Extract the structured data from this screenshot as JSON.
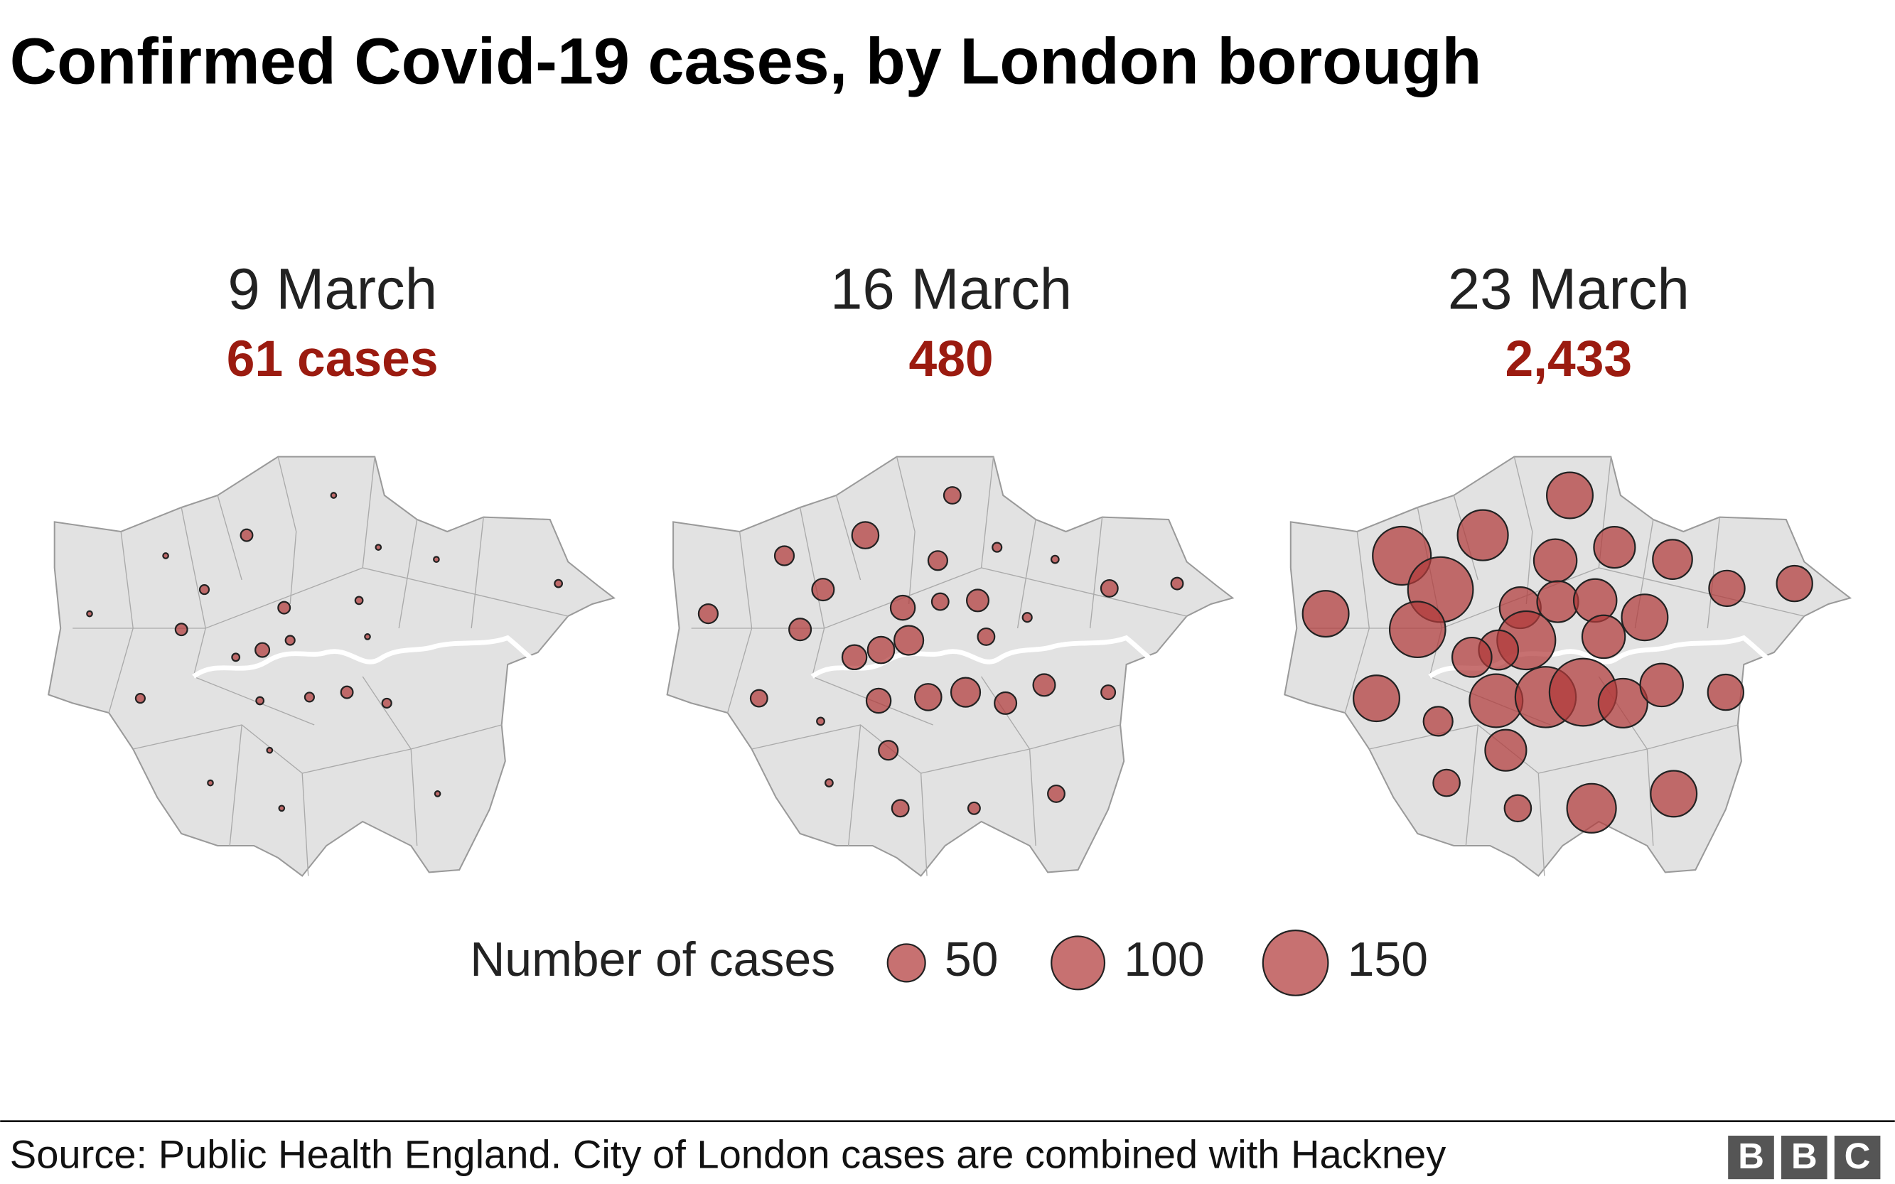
{
  "title": "Confirmed Covid-19 cases, by London borough",
  "color": "#b23a3a",
  "panels": [
    {
      "date": "9 March",
      "total": "61 cases",
      "values": [
        1,
        1,
        5,
        3,
        1,
        5,
        0,
        1,
        1,
        0,
        2,
        5,
        0,
        2,
        0,
        1,
        3,
        7,
        2,
        3,
        0,
        2,
        3,
        5,
        3,
        0,
        0,
        1,
        1,
        1,
        0,
        1
      ]
    },
    {
      "date": "16 March",
      "total": "480",
      "values": [
        10,
        13,
        25,
        17,
        13,
        17,
        13,
        3,
        2,
        10,
        5,
        21,
        10,
        17,
        3,
        10,
        30,
        25,
        21,
        10,
        2,
        21,
        25,
        30,
        17,
        17,
        7,
        13,
        2,
        10,
        5,
        10
      ]
    },
    {
      "date": "23 March",
      "total": "2,433",
      "values": [
        75,
        120,
        90,
        150,
        75,
        110,
        65,
        60,
        55,
        45,
        45,
        60,
        60,
        65,
        75,
        65,
        120,
        55,
        55,
        75,
        30,
        100,
        130,
        160,
        85,
        65,
        45,
        60,
        25,
        25,
        85,
        75
      ]
    }
  ],
  "legend": {
    "title": "Number of cases",
    "values": [
      50,
      100,
      150
    ]
  },
  "source": "Source: Public Health England. City of London cases are combined with Hackney",
  "logo": [
    "B",
    "B",
    "C"
  ]
}
